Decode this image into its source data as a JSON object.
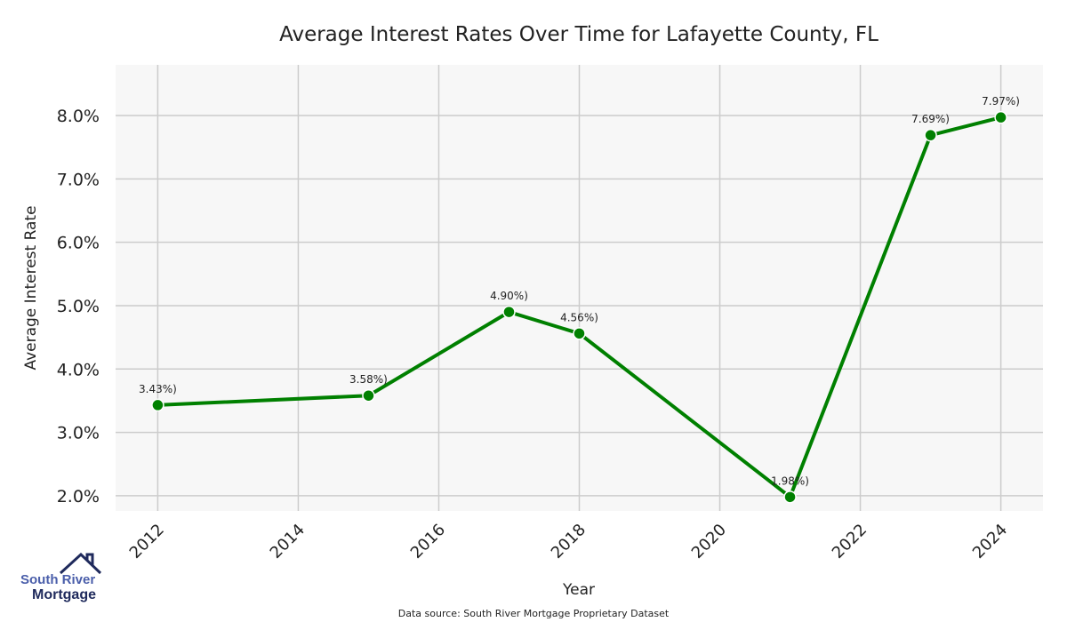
{
  "chart_data": {
    "type": "line",
    "title": "Average Interest Rates Over Time for Lafayette County, FL",
    "xlabel": "Year",
    "ylabel": "Average Interest Rate",
    "x": [
      2012,
      2015,
      2017,
      2018,
      2021,
      2023,
      2024
    ],
    "values": [
      3.43,
      3.58,
      4.9,
      4.56,
      1.98,
      7.69,
      7.97
    ],
    "data_labels": [
      "3.43%)",
      "3.58%)",
      "4.90%)",
      "4.56%)",
      "1.98%)",
      "7.69%)",
      "7.97%)"
    ],
    "xticks": [
      "2012",
      "2014",
      "2016",
      "2018",
      "2020",
      "2022",
      "2024"
    ],
    "yticks": [
      "2.0%",
      "3.0%",
      "4.0%",
      "5.0%",
      "6.0%",
      "7.0%",
      "8.0%"
    ],
    "xlim": [
      2011.4,
      2024.6
    ],
    "ylim": [
      1.76,
      8.8
    ],
    "grid": true,
    "line_color": "#008000",
    "source": "Data source: South River Mortgage Proprietary Dataset"
  },
  "logo": {
    "line1": "South River",
    "line2": "Mortgage"
  }
}
